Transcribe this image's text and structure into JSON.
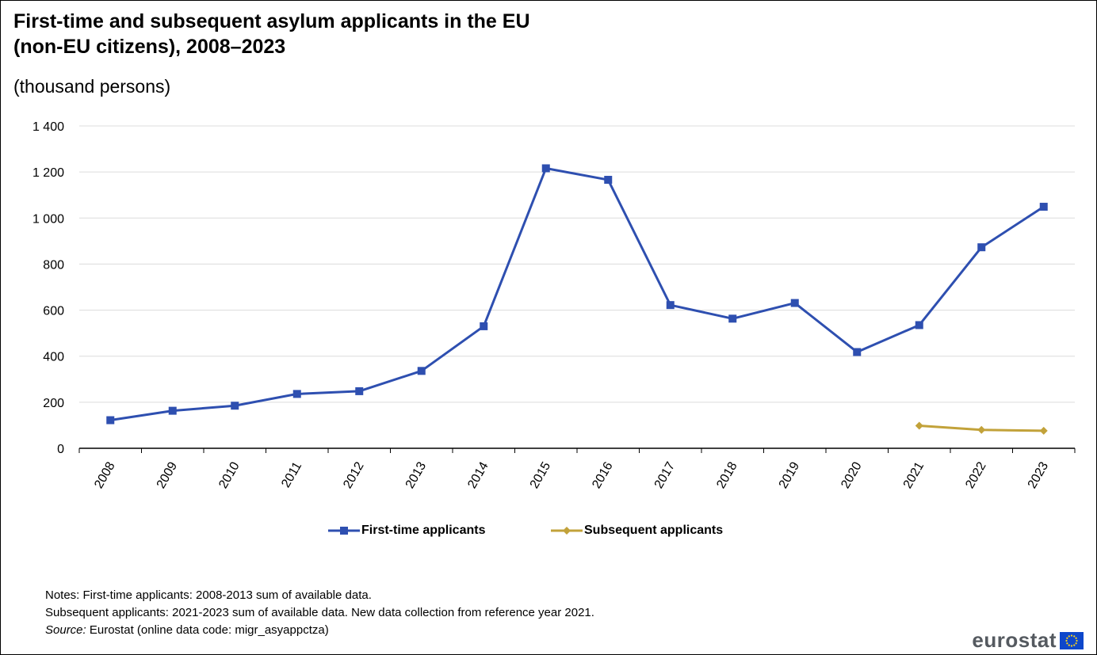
{
  "title_line1": "First-time and subsequent asylum applicants in the EU",
  "title_line2": "(non-EU citizens), 2008–2023",
  "subtitle": "(thousand persons)",
  "chart_data": {
    "type": "line",
    "title": "First-time and subsequent asylum applicants in the EU (non-EU citizens), 2008–2023",
    "subtitle": "(thousand persons)",
    "x": [
      "2008",
      "2009",
      "2010",
      "2011",
      "2012",
      "2013",
      "2014",
      "2015",
      "2016",
      "2017",
      "2018",
      "2019",
      "2020",
      "2021",
      "2022",
      "2023"
    ],
    "ylim": [
      0,
      1400
    ],
    "yticks": [
      0,
      200,
      400,
      600,
      800,
      1000,
      1200,
      1400
    ],
    "ytick_labels": [
      "0",
      "200",
      "400",
      "600",
      "800",
      "1 000",
      "1 200",
      "1 400"
    ],
    "grid": true,
    "legend_position": "bottom",
    "series": [
      {
        "name": "First-time applicants",
        "color": "#2e4fb0",
        "marker": "square",
        "values": [
          122,
          163,
          185,
          236,
          248,
          336,
          530,
          1216,
          1166,
          622,
          563,
          631,
          418,
          535,
          873,
          1049
        ]
      },
      {
        "name": "Subsequent applicants",
        "color": "#c2a23a",
        "marker": "diamond",
        "values": [
          null,
          null,
          null,
          null,
          null,
          null,
          null,
          null,
          null,
          null,
          null,
          null,
          null,
          98,
          80,
          76
        ]
      }
    ]
  },
  "legend": {
    "first_time": "First-time applicants",
    "subsequent": "Subsequent applicants"
  },
  "notes": {
    "line1": "Notes: First-time applicants: 2008-2013 sum of available data.",
    "line2": "Subsequent applicants: 2021-2023 sum of available data. New data collection from reference year 2021.",
    "source_label": "Source:",
    "source_text": " Eurostat (online data code: migr_asyappctza)"
  },
  "brand": {
    "name": "eurostat",
    "flag_color": "#0e47cb",
    "star_color": "#ffd617"
  }
}
